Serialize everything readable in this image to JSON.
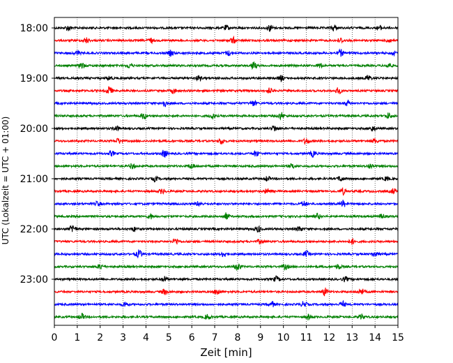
{
  "chart_data": {
    "type": "line",
    "title": "",
    "xlabel": "Zeit  [min]",
    "ylabel": "UTC (Lokalzeit = UTC + 01:00)",
    "xlim": [
      0,
      15
    ],
    "x_ticks": [
      "0",
      "1",
      "2",
      "3",
      "4",
      "5",
      "6",
      "7",
      "8",
      "9",
      "10",
      "11",
      "12",
      "13",
      "14",
      "15"
    ],
    "y_ticks": [
      "18:00",
      "19:00",
      "20:00",
      "21:00",
      "22:00",
      "23:00"
    ],
    "grid": "vertical dotted at each minute",
    "colors": [
      "#000000",
      "#ff0000",
      "#0000ff",
      "#008000"
    ],
    "traces": [
      {
        "start": "18:00",
        "color": "#000000",
        "bursts": [
          [
            0.6,
            0.8
          ],
          [
            7.5,
            0.7
          ],
          [
            9.4,
            1.0
          ],
          [
            12.2,
            0.9
          ],
          [
            14.2,
            0.6
          ]
        ]
      },
      {
        "start": "18:15",
        "color": "#ff0000",
        "bursts": [
          [
            1.4,
            0.8
          ],
          [
            4.2,
            0.7
          ],
          [
            7.8,
            0.9
          ],
          [
            12.5,
            0.7
          ],
          [
            14.6,
            0.6
          ]
        ]
      },
      {
        "start": "18:30",
        "color": "#0000ff",
        "bursts": [
          [
            1.0,
            0.7
          ],
          [
            5.1,
            0.8
          ],
          [
            7.6,
            0.7
          ],
          [
            12.5,
            1.0
          ],
          [
            14.8,
            0.6
          ]
        ]
      },
      {
        "start": "18:45",
        "color": "#008000",
        "bursts": [
          [
            1.2,
            0.9
          ],
          [
            3.3,
            0.7
          ],
          [
            8.7,
            1.0
          ],
          [
            11.6,
            0.7
          ],
          [
            14.6,
            0.8
          ]
        ]
      },
      {
        "start": "19:00",
        "color": "#000000",
        "bursts": [
          [
            2.4,
            0.7
          ],
          [
            6.3,
            0.7
          ],
          [
            9.9,
            0.8
          ],
          [
            13.7,
            0.9
          ]
        ]
      },
      {
        "start": "19:15",
        "color": "#ff0000",
        "bursts": [
          [
            2.4,
            1.3
          ],
          [
            5.2,
            0.7
          ],
          [
            9.4,
            0.8
          ],
          [
            12.4,
            0.9
          ]
        ]
      },
      {
        "start": "19:30",
        "color": "#0000ff",
        "bursts": [
          [
            4.8,
            1.0
          ],
          [
            8.7,
            0.8
          ],
          [
            12.8,
            0.7
          ]
        ]
      },
      {
        "start": "19:45",
        "color": "#008000",
        "bursts": [
          [
            3.9,
            0.9
          ],
          [
            6.9,
            0.8
          ],
          [
            9.9,
            1.0
          ],
          [
            14.6,
            0.9
          ]
        ]
      },
      {
        "start": "20:00",
        "color": "#000000",
        "bursts": [
          [
            2.7,
            0.7
          ],
          [
            9.6,
            0.9
          ],
          [
            13.9,
            0.8
          ]
        ]
      },
      {
        "start": "20:15",
        "color": "#ff0000",
        "bursts": [
          [
            2.8,
            0.8
          ],
          [
            7.3,
            0.9
          ],
          [
            11.0,
            0.9
          ],
          [
            14.0,
            0.7
          ]
        ]
      },
      {
        "start": "20:30",
        "color": "#0000ff",
        "bursts": [
          [
            2.5,
            0.7
          ],
          [
            4.8,
            1.1
          ],
          [
            8.8,
            0.8
          ],
          [
            11.3,
            0.9
          ]
        ]
      },
      {
        "start": "20:45",
        "color": "#008000",
        "bursts": [
          [
            3.4,
            0.8
          ],
          [
            6.0,
            0.8
          ],
          [
            10.4,
            0.7
          ],
          [
            13.8,
            0.8
          ]
        ]
      },
      {
        "start": "21:00",
        "color": "#000000",
        "bursts": [
          [
            4.4,
            0.7
          ],
          [
            9.3,
            0.7
          ],
          [
            12.5,
            0.8
          ],
          [
            14.5,
            0.6
          ]
        ]
      },
      {
        "start": "21:15",
        "color": "#ff0000",
        "bursts": [
          [
            4.7,
            0.7
          ],
          [
            9.3,
            0.8
          ],
          [
            12.6,
            0.9
          ],
          [
            14.8,
            0.8
          ]
        ]
      },
      {
        "start": "21:30",
        "color": "#0000ff",
        "bursts": [
          [
            1.9,
            0.7
          ],
          [
            6.3,
            0.7
          ],
          [
            10.9,
            0.8
          ],
          [
            12.6,
            1.0
          ]
        ]
      },
      {
        "start": "21:45",
        "color": "#008000",
        "bursts": [
          [
            4.2,
            0.7
          ],
          [
            7.5,
            1.0
          ],
          [
            11.5,
            0.8
          ],
          [
            14.3,
            0.7
          ]
        ]
      },
      {
        "start": "22:00",
        "color": "#000000",
        "bursts": [
          [
            0.8,
            1.3
          ],
          [
            3.5,
            0.7
          ],
          [
            8.9,
            0.9
          ],
          [
            10.7,
            0.8
          ]
        ]
      },
      {
        "start": "22:15",
        "color": "#ff0000",
        "bursts": [
          [
            5.3,
            1.0
          ],
          [
            9.0,
            0.7
          ],
          [
            13.0,
            0.8
          ]
        ]
      },
      {
        "start": "22:30",
        "color": "#0000ff",
        "bursts": [
          [
            3.7,
            1.2
          ],
          [
            7.4,
            0.8
          ],
          [
            11.0,
            0.8
          ],
          [
            14.0,
            0.8
          ]
        ]
      },
      {
        "start": "22:45",
        "color": "#008000",
        "bursts": [
          [
            2.0,
            0.7
          ],
          [
            8.0,
            1.2
          ],
          [
            10.1,
            0.8
          ],
          [
            12.4,
            0.7
          ]
        ]
      },
      {
        "start": "23:00",
        "color": "#000000",
        "bursts": [
          [
            4.8,
            0.8
          ],
          [
            9.7,
            0.8
          ],
          [
            12.7,
            0.7
          ]
        ]
      },
      {
        "start": "23:15",
        "color": "#ff0000",
        "bursts": [
          [
            4.8,
            0.8
          ],
          [
            7.1,
            1.0
          ],
          [
            11.8,
            1.2
          ],
          [
            13.4,
            1.0
          ]
        ]
      },
      {
        "start": "23:30",
        "color": "#0000ff",
        "bursts": [
          [
            3.1,
            0.8
          ],
          [
            9.5,
            0.8
          ],
          [
            10.9,
            0.9
          ],
          [
            12.6,
            0.8
          ]
        ]
      },
      {
        "start": "23:45",
        "color": "#008000",
        "bursts": [
          [
            1.2,
            0.9
          ],
          [
            6.7,
            0.8
          ],
          [
            11.1,
            0.8
          ],
          [
            13.4,
            0.8
          ]
        ]
      }
    ]
  }
}
